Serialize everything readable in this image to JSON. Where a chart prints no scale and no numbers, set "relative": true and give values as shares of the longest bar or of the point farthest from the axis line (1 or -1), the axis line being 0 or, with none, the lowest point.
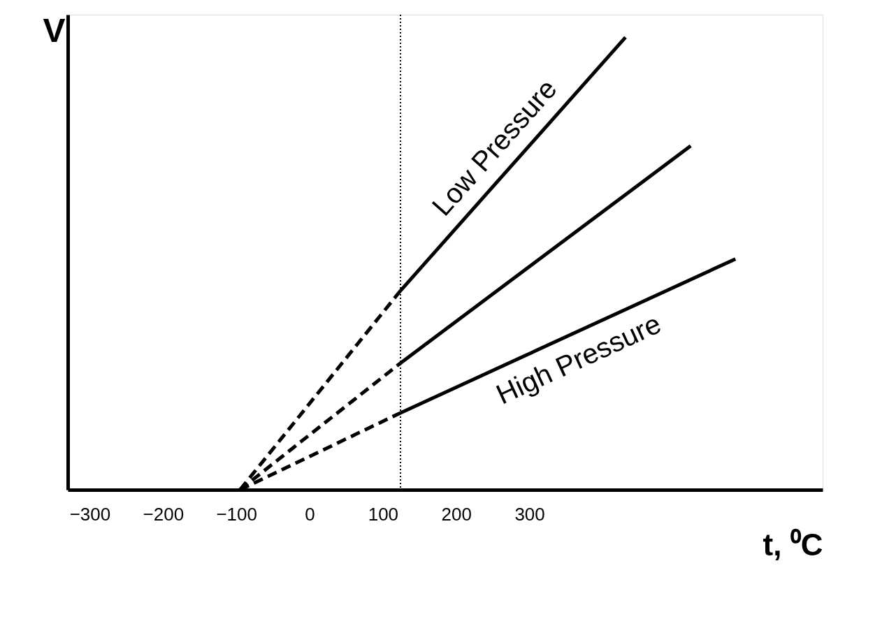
{
  "chart_data": {
    "type": "line",
    "relative": true,
    "xlabel": "t, ⁰C",
    "ylabel": "V",
    "xlim": [
      -330,
      700
    ],
    "xticks": [
      -300,
      -200,
      -100,
      0,
      100,
      200,
      300
    ],
    "grid": false,
    "marker": "none",
    "series": [
      {
        "color": "#000000",
        "line_style": "dashed",
        "x": [
          -95,
          124
        ],
        "values": [
          0,
          0.44
        ]
      },
      {
        "color": "#000000",
        "line_style": "dashed",
        "x": [
          -95,
          124
        ],
        "values": [
          0,
          0.28
        ]
      },
      {
        "color": "#000000",
        "line_style": "dashed",
        "x": [
          -95,
          124
        ],
        "values": [
          0,
          0.17
        ]
      },
      {
        "name": "Low Pressure",
        "color": "#000000",
        "line_style": "solid",
        "x": [
          124,
          431
        ],
        "values": [
          0.44,
          1
        ]
      },
      {
        "color": "#000000",
        "line_style": "solid",
        "x": [
          124,
          520
        ],
        "values": [
          0.28,
          0.76
        ]
      },
      {
        "name": "High Pressure",
        "color": "#000000",
        "line_style": "solid",
        "x": [
          124,
          581
        ],
        "values": [
          0.17,
          0.51
        ]
      }
    ],
    "ref_lines": [
      {
        "axis": "x",
        "value": 124,
        "line_style": "dotted",
        "color": "#000000"
      }
    ]
  }
}
